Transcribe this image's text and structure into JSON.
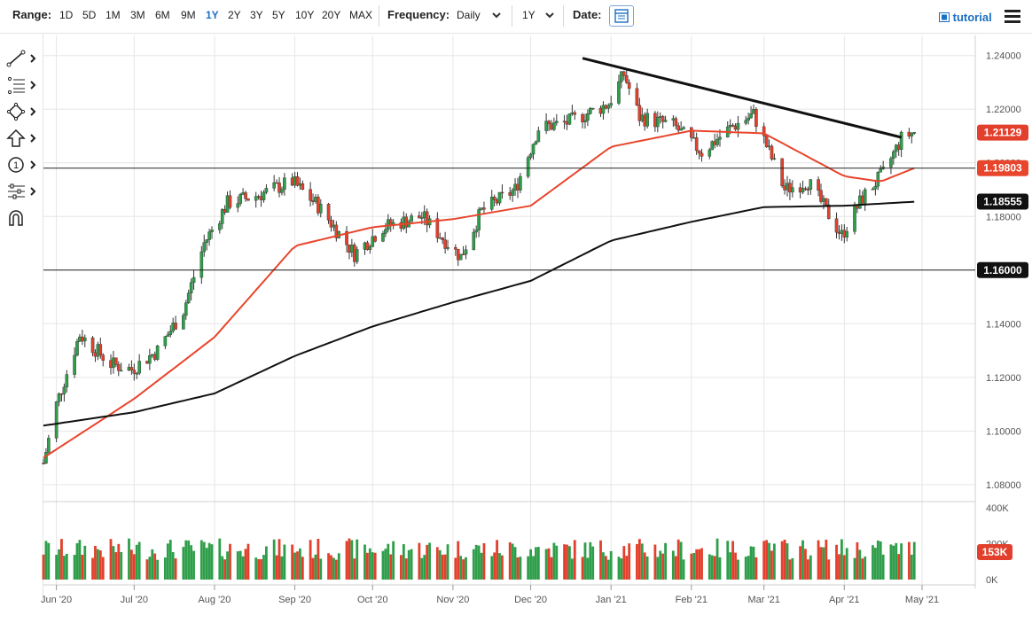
{
  "toolbar": {
    "range_label": "Range:",
    "ranges": [
      "1D",
      "5D",
      "1M",
      "3M",
      "6M",
      "9M",
      "1Y",
      "2Y",
      "3Y",
      "5Y",
      "10Y",
      "20Y",
      "MAX"
    ],
    "active_range": "1Y",
    "frequency_label": "Frequency:",
    "frequency_value": "Daily",
    "period_value": "1Y",
    "date_label": "Date:",
    "tutorial_label": "tutorial"
  },
  "left_tools": [
    {
      "icon": "line-tool-icon"
    },
    {
      "icon": "fibonacci-icon"
    },
    {
      "icon": "shapes-icon"
    },
    {
      "icon": "arrow-up-icon"
    },
    {
      "icon": "annotation-number-icon",
      "text": "1"
    },
    {
      "icon": "indicators-icon"
    },
    {
      "icon": "magnet-icon"
    }
  ],
  "colors": {
    "up": "#2e9e4a",
    "down": "#e2402c",
    "ma_fast": "#e8452c",
    "ma_slow": "#111111",
    "axis_text": "#555555",
    "grid": "#e6e6e6",
    "accent": "#1b6fc2"
  },
  "chart_data": {
    "type": "candlestick",
    "x_tick_labels": [
      "Jun '20",
      "Jul '20",
      "Aug '20",
      "Sep '20",
      "Oct '20",
      "Nov '20",
      "Dec '20",
      "Jan '21",
      "Feb '21",
      "Mar '21",
      "Apr '21",
      "May '21"
    ],
    "x_tick_dates": [
      "2020-06-01",
      "2020-07-01",
      "2020-08-01",
      "2020-09-01",
      "2020-10-01",
      "2020-11-01",
      "2020-12-01",
      "2021-01-01",
      "2021-02-01",
      "2021-03-01",
      "2021-04-01",
      "2021-05-01"
    ],
    "x_range": [
      "2020-05-27",
      "2021-05-01"
    ],
    "y_range": [
      1.075,
      1.2475
    ],
    "y_ticks": [
      "1.08000",
      "1.10000",
      "1.12000",
      "1.14000",
      "1.16000",
      "1.18000",
      "1.20000",
      "1.22000",
      "1.24000"
    ],
    "y_tick_values": [
      1.08,
      1.1,
      1.12,
      1.14,
      1.16,
      1.18,
      1.2,
      1.22,
      1.24
    ],
    "price_keypoints": [
      [
        "2020-05-27",
        1.088
      ],
      [
        "2020-06-01",
        1.11
      ],
      [
        "2020-06-10",
        1.136
      ],
      [
        "2020-06-22",
        1.125
      ],
      [
        "2020-06-30",
        1.123
      ],
      [
        "2020-07-10",
        1.13
      ],
      [
        "2020-07-20",
        1.145
      ],
      [
        "2020-07-28",
        1.17
      ],
      [
        "2020-08-06",
        1.185
      ],
      [
        "2020-08-18",
        1.188
      ],
      [
        "2020-08-31",
        1.193
      ],
      [
        "2020-09-10",
        1.184
      ],
      [
        "2020-09-24",
        1.166
      ],
      [
        "2020-10-05",
        1.176
      ],
      [
        "2020-10-20",
        1.18
      ],
      [
        "2020-11-04",
        1.165
      ],
      [
        "2020-11-12",
        1.182
      ],
      [
        "2020-11-25",
        1.19
      ],
      [
        "2020-12-04",
        1.213
      ],
      [
        "2020-12-15",
        1.215
      ],
      [
        "2020-12-31",
        1.222
      ],
      [
        "2021-01-06",
        1.233
      ],
      [
        "2021-01-12",
        1.217
      ],
      [
        "2021-01-25",
        1.214
      ],
      [
        "2021-02-05",
        1.204
      ],
      [
        "2021-02-16",
        1.213
      ],
      [
        "2021-02-25",
        1.218
      ],
      [
        "2021-03-09",
        1.19
      ],
      [
        "2021-03-18",
        1.193
      ],
      [
        "2021-03-31",
        1.173
      ],
      [
        "2021-04-08",
        1.187
      ],
      [
        "2021-04-16",
        1.196
      ],
      [
        "2021-04-23",
        1.209
      ],
      [
        "2021-04-28",
        1.2115
      ]
    ],
    "ma_fast_keypoints": [
      [
        "2020-05-27",
        1.09
      ],
      [
        "2020-07-01",
        1.112
      ],
      [
        "2020-08-01",
        1.135
      ],
      [
        "2020-09-01",
        1.169
      ],
      [
        "2020-10-01",
        1.176
      ],
      [
        "2020-11-01",
        1.179
      ],
      [
        "2020-12-01",
        1.184
      ],
      [
        "2021-01-01",
        1.206
      ],
      [
        "2021-02-01",
        1.212
      ],
      [
        "2021-03-01",
        1.211
      ],
      [
        "2021-04-01",
        1.195
      ],
      [
        "2021-04-15",
        1.193
      ],
      [
        "2021-04-28",
        1.198
      ]
    ],
    "ma_slow_keypoints": [
      [
        "2020-05-27",
        1.102
      ],
      [
        "2020-07-01",
        1.107
      ],
      [
        "2020-08-01",
        1.114
      ],
      [
        "2020-09-01",
        1.128
      ],
      [
        "2020-10-01",
        1.139
      ],
      [
        "2020-11-01",
        1.148
      ],
      [
        "2020-12-01",
        1.156
      ],
      [
        "2021-01-01",
        1.171
      ],
      [
        "2021-02-01",
        1.178
      ],
      [
        "2021-03-01",
        1.1835
      ],
      [
        "2021-04-01",
        1.184
      ],
      [
        "2021-04-28",
        1.1855
      ]
    ],
    "trendline": [
      [
        "2020-12-21",
        1.239
      ],
      [
        "2021-04-23",
        1.2095
      ]
    ],
    "horizontal_lines": [
      1.198,
      1.16
    ],
    "price_labels": [
      {
        "text": "1.21129",
        "value": 1.21129,
        "kind": "last"
      },
      {
        "text": "1.19803",
        "value": 1.19803,
        "kind": "ma_fast"
      },
      {
        "text": "1.18555",
        "value": 1.18555,
        "kind": "ma_slow"
      },
      {
        "text": "1.16000",
        "value": 1.16,
        "kind": "level"
      }
    ],
    "volume": {
      "y_ticks": [
        "400K",
        "200K",
        "0K"
      ],
      "y_tick_values": [
        400000,
        200000,
        0
      ],
      "max": 400000,
      "current_label": "153K",
      "current_value": 153000
    }
  }
}
